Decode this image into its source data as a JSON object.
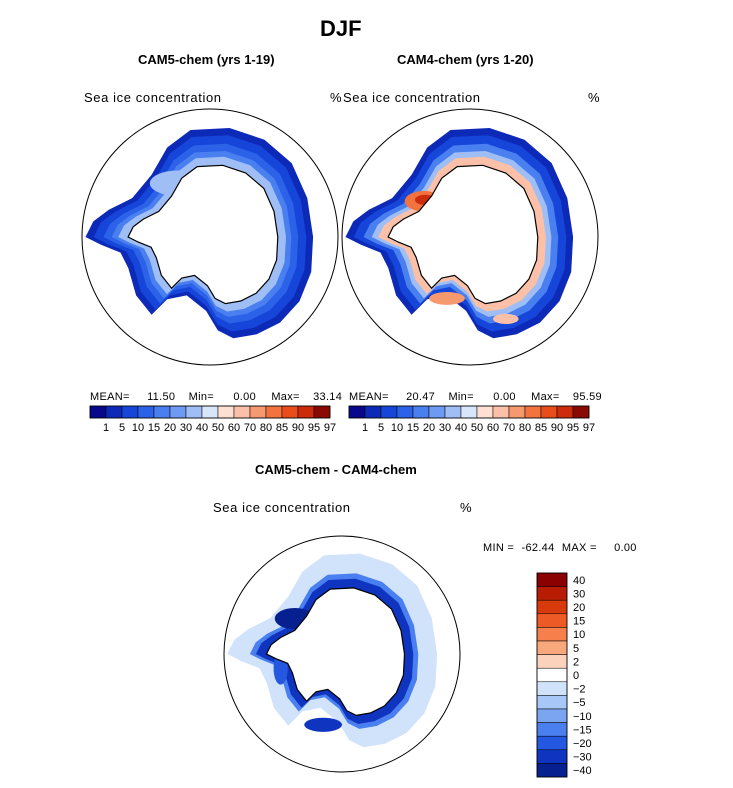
{
  "chart_data": {
    "type": "heatmap",
    "title": "DJF",
    "panels": [
      {
        "subtitle": "CAM5-chem (yrs 1-19)",
        "variable": "Sea ice concentration",
        "units": "%",
        "stats": {
          "mean_label": "MEAN=",
          "mean": "11.50",
          "min_label": "Min=",
          "min": "0.00",
          "max_label": "Max=",
          "max": "33.14"
        },
        "colorbar_ticks": [
          "1",
          "5",
          "10",
          "15",
          "20",
          "30",
          "40",
          "50",
          "60",
          "70",
          "80",
          "85",
          "90",
          "95",
          "97"
        ]
      },
      {
        "subtitle": "CAM4-chem (yrs 1-20)",
        "variable": "Sea ice concentration",
        "units": "%",
        "stats": {
          "mean_label": "MEAN=",
          "mean": "20.47",
          "min_label": "Min=",
          "min": "0.00",
          "max_label": "Max=",
          "max": "95.59"
        },
        "colorbar_ticks": [
          "1",
          "5",
          "10",
          "15",
          "20",
          "30",
          "40",
          "50",
          "60",
          "70",
          "80",
          "85",
          "90",
          "95",
          "97"
        ]
      },
      {
        "subtitle": "CAM5-chem - CAM4-chem",
        "variable": "Sea ice concentration",
        "units": "%",
        "stats": {
          "min_label": "MIN =",
          "min": "-62.44",
          "max_label": "MAX =",
          "max": "0.00"
        },
        "colorbar_ticks": [
          "40",
          "30",
          "20",
          "15",
          "10",
          "5",
          "2",
          "0",
          "−2",
          "−5",
          "−10",
          "−15",
          "−20",
          "−30",
          "−40"
        ]
      }
    ],
    "abs_colors": [
      "#08088c",
      "#0d29b8",
      "#1546d9",
      "#2b62e8",
      "#4a7ff0",
      "#6d9af3",
      "#9fbef6",
      "#d8e6fb",
      "#fde0d2",
      "#fbc0a7",
      "#f7996f",
      "#f3733f",
      "#ea4d1c",
      "#cc2b0c",
      "#8a0a03"
    ],
    "diff_colors": [
      "#8b0000",
      "#b81d03",
      "#d83a0c",
      "#ee5a26",
      "#f67f4c",
      "#f9a77c",
      "#fbd2bc",
      "#ffffff",
      "#d0e3fb",
      "#a6c7f7",
      "#7ba4f1",
      "#4a7ff0",
      "#2458e0",
      "#0f35c0",
      "#06208f"
    ]
  }
}
